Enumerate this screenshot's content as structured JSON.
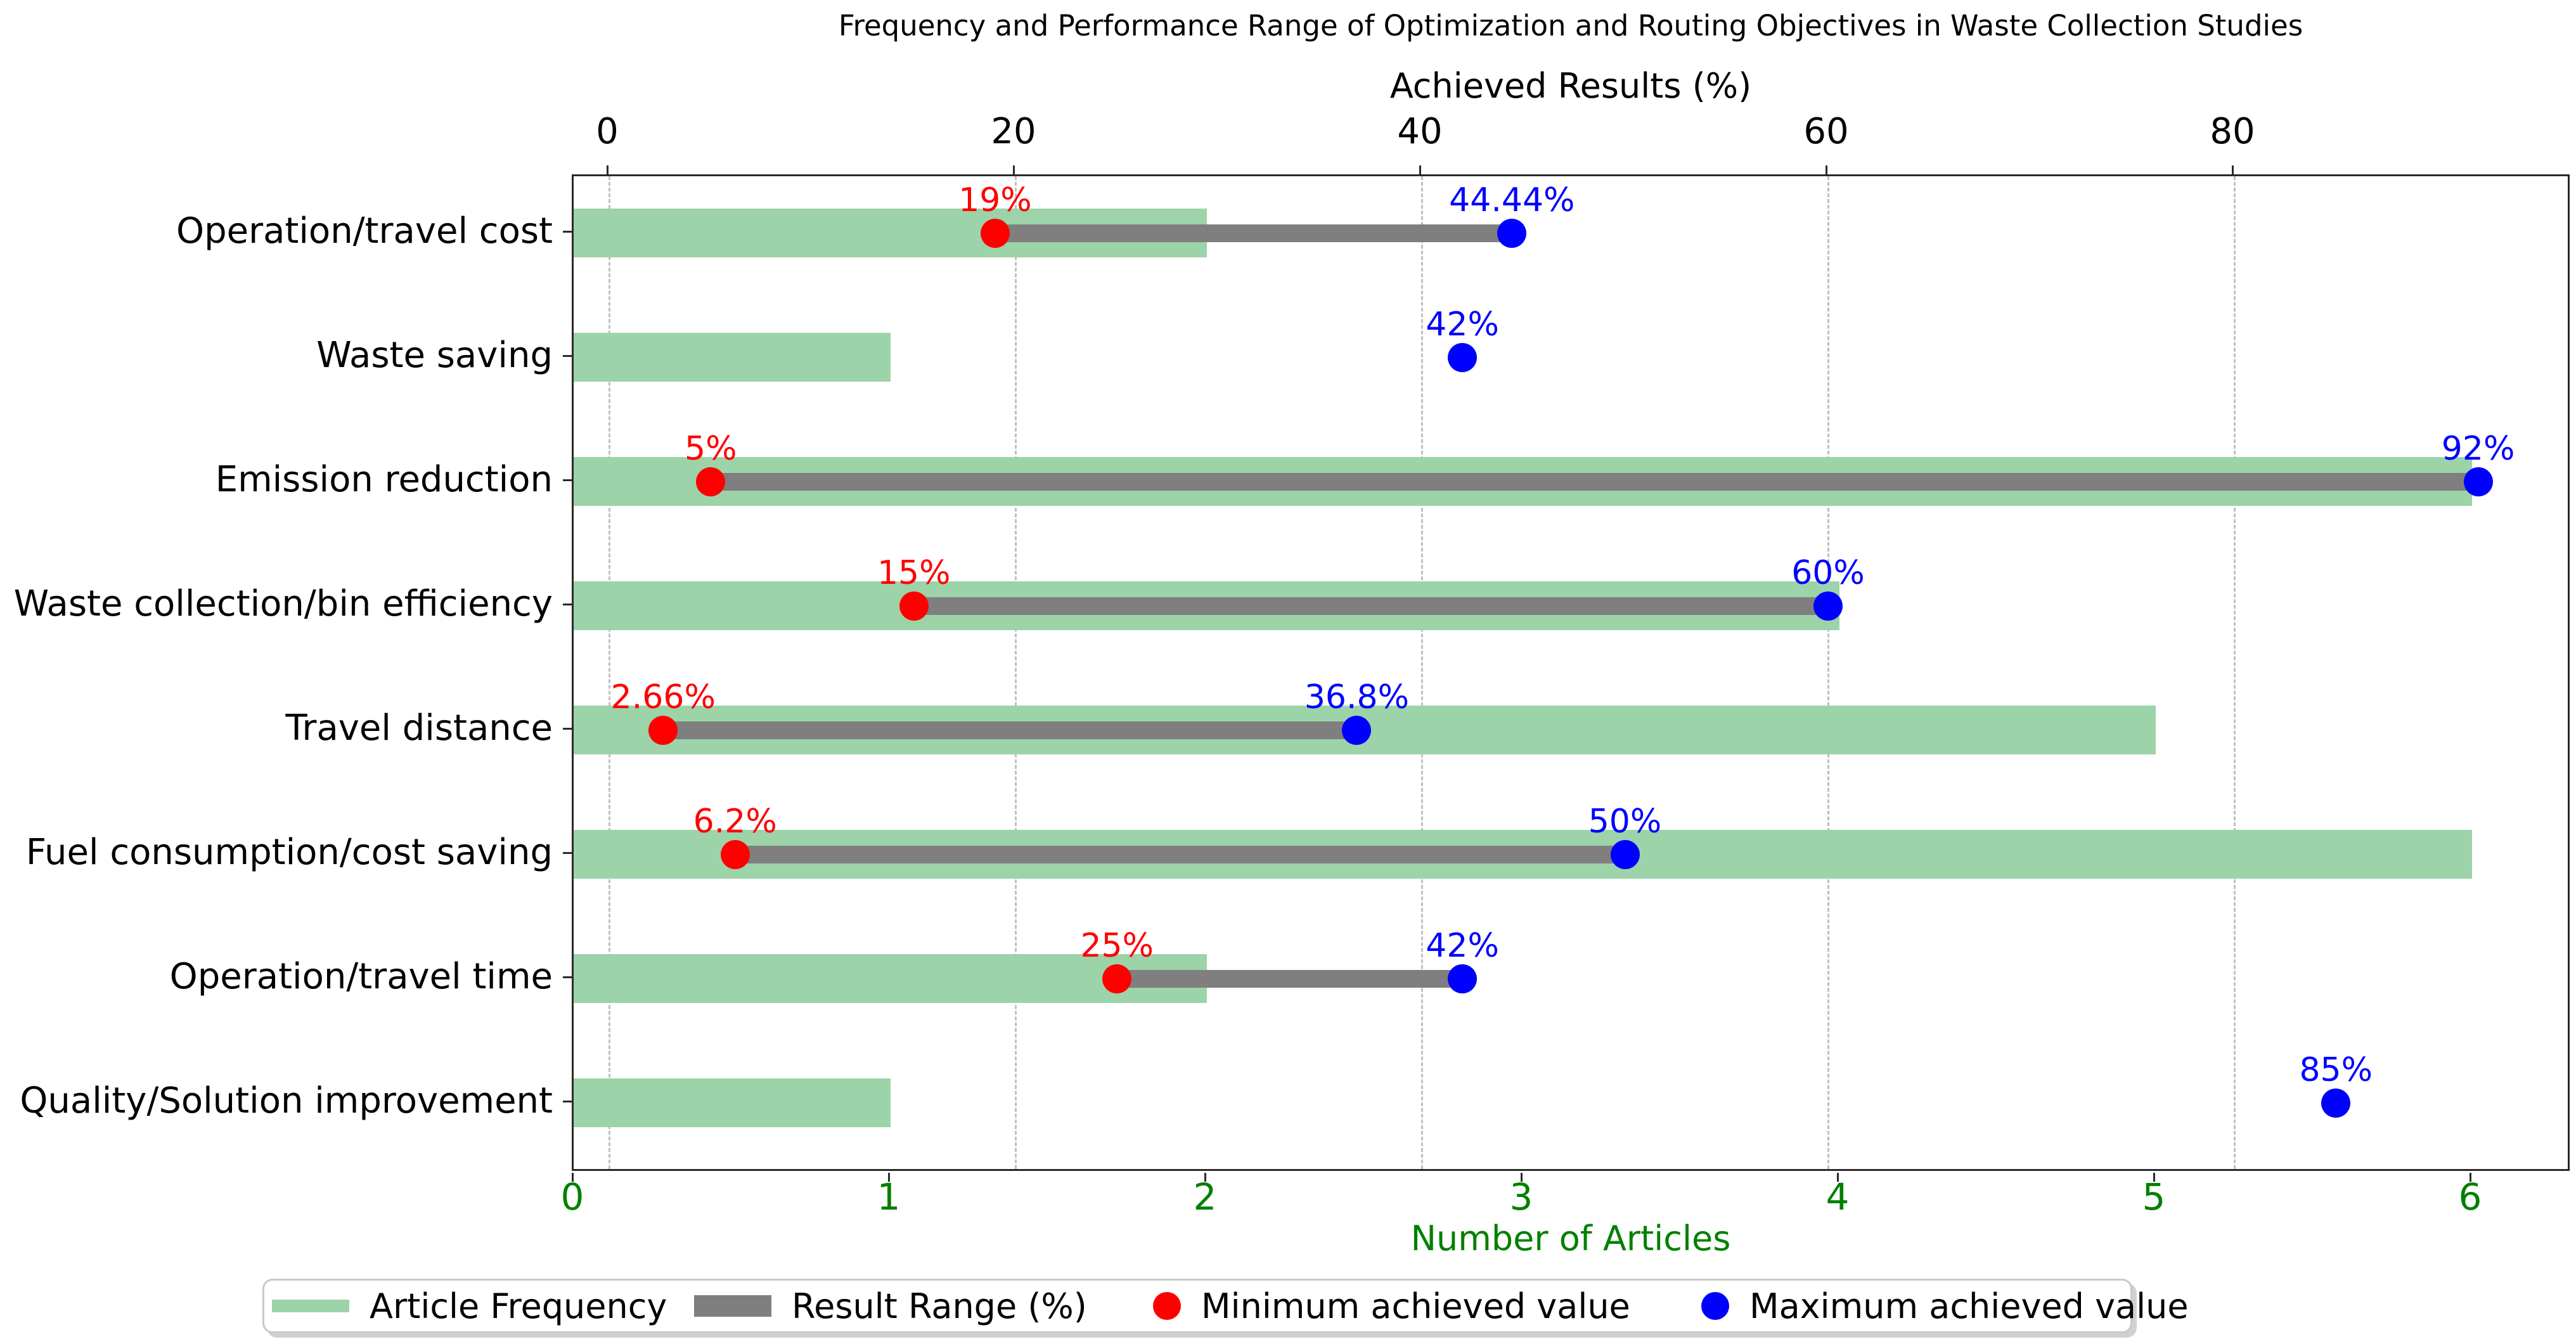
{
  "title": "Frequency and Performance Range of Optimization and Routing Objectives in Waste Collection Studies",
  "top_axis": {
    "label": "Achieved Results (%)",
    "ticks": [
      0,
      20,
      40,
      60,
      80
    ],
    "tick_labels": [
      "0",
      "20",
      "40",
      "60",
      "80"
    ]
  },
  "bottom_axis": {
    "label": "Number of Articles",
    "ticks": [
      0,
      1,
      2,
      3,
      4,
      5,
      6
    ],
    "tick_labels": [
      "0",
      "1",
      "2",
      "3",
      "4",
      "5",
      "6"
    ]
  },
  "legend": {
    "items": [
      {
        "swatch": "green-rect-swatch",
        "label": "Article Frequency"
      },
      {
        "swatch": "gray-rect-swatch",
        "label": "Result Range (%)"
      },
      {
        "swatch": "red-dot-swatch",
        "label": "Minimum achieved value"
      },
      {
        "swatch": "blue-dot-swatch",
        "label": "Maximum achieved value"
      }
    ]
  },
  "colors": {
    "frequency_bar": "#9cd3a9",
    "range_bar": "#7f7f7f",
    "min_dot": "#ff0000",
    "max_dot": "#0000ff",
    "bottom_axis_text": "#008000",
    "top_axis_text": "#000000"
  },
  "chart_data": {
    "type": "bar",
    "orientation": "horizontal",
    "title": "Frequency and Performance Range of Optimization and Routing Objectives in Waste Collection Studies",
    "categories": [
      "Operation/travel cost",
      "Waste saving",
      "Emission reduction",
      "Waste collection/bin efficiency",
      "Travel distance",
      "Fuel consumption/cost saving",
      "Operation/travel time",
      "Quality/Solution improvement"
    ],
    "series": [
      {
        "name": "Article Frequency",
        "axis": "bottom",
        "xlabel": "Number of Articles",
        "xlim": [
          0,
          6.3
        ],
        "values": [
          2,
          1,
          6,
          4,
          5,
          6,
          2,
          1
        ]
      },
      {
        "name": "Result Range (%)",
        "axis": "top",
        "xlabel": "Achieved Results (%)",
        "xlim": [
          -1.75,
          96.4
        ],
        "min_values": [
          19,
          null,
          5,
          15,
          2.66,
          6.2,
          25,
          null
        ],
        "max_values": [
          44.44,
          42,
          92,
          60,
          36.8,
          50,
          42,
          85
        ],
        "min_labels": [
          "19%",
          null,
          "5%",
          "15%",
          "2.66%",
          "6.2%",
          "25%",
          null
        ],
        "max_labels": [
          "44.44%",
          "42%",
          "92%",
          "60%",
          "36.8%",
          "50%",
          "42%",
          "85%"
        ]
      }
    ],
    "grid": "vertical dashed at top-axis ticks",
    "legend_position": "bottom"
  }
}
